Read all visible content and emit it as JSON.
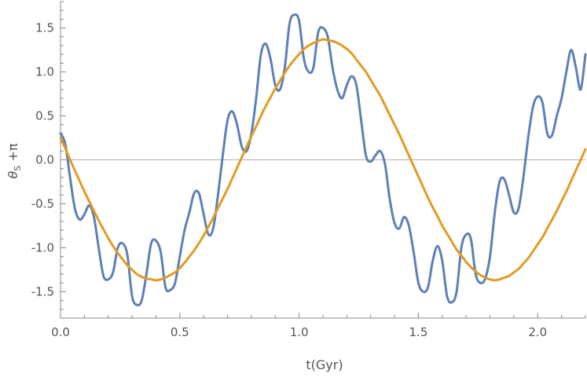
{
  "chart_data": {
    "type": "line",
    "title": "",
    "xlabel": "t(Gyr)",
    "ylabel": "θs +π",
    "ylabel_parts": {
      "main": "θ",
      "sub": "S",
      "rest": " +π"
    },
    "xlim": [
      0,
      2.2
    ],
    "ylim": [
      -1.8,
      1.8
    ],
    "x_ticks": [
      0.0,
      0.5,
      1.0,
      1.5,
      2.0
    ],
    "x_tick_labels": [
      "0.0",
      "0.5",
      "1.0",
      "1.5",
      "2.0"
    ],
    "y_ticks": [
      -1.5,
      -1.0,
      -0.5,
      0.0,
      0.5,
      1.0,
      1.5
    ],
    "y_tick_labels": [
      "-1.5",
      "-1.0",
      "-0.5",
      "0.0",
      "0.5",
      "1.0",
      "1.5"
    ],
    "grid": false,
    "zero_line": true,
    "series": [
      {
        "color": "#5E81B5",
        "x": [
          0.0,
          0.02,
          0.04,
          0.06,
          0.08,
          0.1,
          0.12,
          0.14,
          0.16,
          0.18,
          0.2,
          0.22,
          0.24,
          0.26,
          0.28,
          0.3,
          0.32,
          0.34,
          0.36,
          0.38,
          0.4,
          0.42,
          0.44,
          0.46,
          0.48,
          0.5,
          0.52,
          0.54,
          0.56,
          0.58,
          0.6,
          0.62,
          0.64,
          0.66,
          0.68,
          0.7,
          0.72,
          0.74,
          0.76,
          0.78,
          0.8,
          0.82,
          0.84,
          0.86,
          0.88,
          0.9,
          0.92,
          0.94,
          0.96,
          0.98,
          1.0,
          1.02,
          1.04,
          1.06,
          1.08,
          1.1,
          1.12,
          1.14,
          1.16,
          1.18,
          1.2,
          1.22,
          1.24,
          1.26,
          1.28,
          1.3,
          1.32,
          1.34,
          1.36,
          1.38,
          1.4,
          1.42,
          1.44,
          1.46,
          1.48,
          1.5,
          1.52,
          1.54,
          1.56,
          1.58,
          1.6,
          1.62,
          1.64,
          1.66,
          1.68,
          1.7,
          1.72,
          1.74,
          1.76,
          1.78,
          1.8,
          1.82,
          1.84,
          1.86,
          1.88,
          1.9,
          1.92,
          1.94,
          1.96,
          1.98,
          2.0,
          2.02,
          2.04,
          2.06,
          2.08,
          2.1,
          2.12,
          2.14,
          2.16,
          2.18,
          2.2
        ],
        "values": [
          0.3,
          0.18,
          -0.2,
          -0.55,
          -0.68,
          -0.62,
          -0.52,
          -0.65,
          -1.0,
          -1.32,
          -1.36,
          -1.28,
          -1.0,
          -0.95,
          -1.08,
          -1.55,
          -1.65,
          -1.6,
          -1.3,
          -0.95,
          -0.92,
          -1.05,
          -1.45,
          -1.48,
          -1.4,
          -1.1,
          -0.8,
          -0.6,
          -0.38,
          -0.38,
          -0.62,
          -0.85,
          -0.78,
          -0.4,
          0.05,
          0.45,
          0.55,
          0.4,
          0.15,
          0.1,
          0.3,
          0.7,
          1.2,
          1.32,
          1.15,
          0.85,
          0.8,
          1.05,
          1.55,
          1.65,
          1.58,
          1.15,
          1.0,
          1.05,
          1.45,
          1.5,
          1.4,
          1.05,
          0.8,
          0.7,
          0.85,
          0.95,
          0.85,
          0.45,
          0.05,
          -0.02,
          0.05,
          0.1,
          -0.05,
          -0.45,
          -0.72,
          -0.78,
          -0.65,
          -0.75,
          -1.05,
          -1.4,
          -1.5,
          -1.45,
          -1.15,
          -0.98,
          -1.15,
          -1.55,
          -1.62,
          -1.5,
          -1.0,
          -0.85,
          -0.9,
          -1.3,
          -1.4,
          -1.35,
          -1.1,
          -0.6,
          -0.25,
          -0.22,
          -0.4,
          -0.6,
          -0.55,
          -0.2,
          0.25,
          0.6,
          0.72,
          0.65,
          0.3,
          0.28,
          0.5,
          0.7,
          1.0,
          1.25,
          1.05,
          0.8,
          1.2
        ]
      },
      {
        "color": "#E19C24",
        "x": [
          0.0,
          0.02,
          0.04,
          0.06,
          0.08,
          0.1,
          0.12,
          0.14,
          0.16,
          0.18,
          0.2,
          0.22,
          0.24,
          0.26,
          0.28,
          0.3,
          0.32,
          0.34,
          0.36,
          0.38,
          0.4,
          0.42,
          0.44,
          0.46,
          0.48,
          0.5,
          0.52,
          0.54,
          0.56,
          0.58,
          0.6,
          0.62,
          0.64,
          0.66,
          0.68,
          0.7,
          0.72,
          0.74,
          0.76,
          0.78,
          0.8,
          0.82,
          0.84,
          0.86,
          0.88,
          0.9,
          0.92,
          0.94,
          0.96,
          0.98,
          1.0,
          1.02,
          1.04,
          1.06,
          1.08,
          1.1,
          1.12,
          1.14,
          1.16,
          1.18,
          1.2,
          1.22,
          1.24,
          1.26,
          1.28,
          1.3,
          1.32,
          1.34,
          1.36,
          1.38,
          1.4,
          1.42,
          1.44,
          1.46,
          1.48,
          1.5,
          1.52,
          1.54,
          1.56,
          1.58,
          1.6,
          1.62,
          1.64,
          1.66,
          1.68,
          1.7,
          1.72,
          1.74,
          1.76,
          1.78,
          1.8,
          1.82,
          1.84,
          1.86,
          1.88,
          1.9,
          1.92,
          1.94,
          1.96,
          1.98,
          2.0,
          2.02,
          2.04,
          2.06,
          2.08,
          2.1,
          2.12,
          2.14,
          2.16,
          2.18,
          2.2
        ],
        "values": [
          0.25,
          0.13,
          0.0,
          -0.12,
          -0.24,
          -0.36,
          -0.47,
          -0.58,
          -0.69,
          -0.79,
          -0.89,
          -0.98,
          -1.06,
          -1.13,
          -1.2,
          -1.25,
          -1.3,
          -1.33,
          -1.35,
          -1.36,
          -1.37,
          -1.36,
          -1.34,
          -1.31,
          -1.28,
          -1.23,
          -1.17,
          -1.1,
          -1.03,
          -0.95,
          -0.86,
          -0.76,
          -0.66,
          -0.55,
          -0.44,
          -0.33,
          -0.21,
          -0.09,
          0.03,
          0.15,
          0.27,
          0.38,
          0.5,
          0.61,
          0.71,
          0.81,
          0.9,
          0.99,
          1.07,
          1.14,
          1.2,
          1.26,
          1.3,
          1.33,
          1.35,
          1.37,
          1.36,
          1.35,
          1.33,
          1.3,
          1.26,
          1.21,
          1.14,
          1.07,
          1.0,
          0.91,
          0.82,
          0.73,
          0.62,
          0.51,
          0.4,
          0.29,
          0.17,
          0.05,
          -0.07,
          -0.19,
          -0.31,
          -0.43,
          -0.54,
          -0.64,
          -0.75,
          -0.84,
          -0.93,
          -1.02,
          -1.09,
          -1.16,
          -1.22,
          -1.27,
          -1.31,
          -1.34,
          -1.36,
          -1.37,
          -1.36,
          -1.34,
          -1.32,
          -1.28,
          -1.24,
          -1.18,
          -1.12,
          -1.04,
          -0.96,
          -0.88,
          -0.78,
          -0.68,
          -0.58,
          -0.47,
          -0.36,
          -0.24,
          -0.12,
          0.0,
          0.12
        ]
      }
    ]
  }
}
